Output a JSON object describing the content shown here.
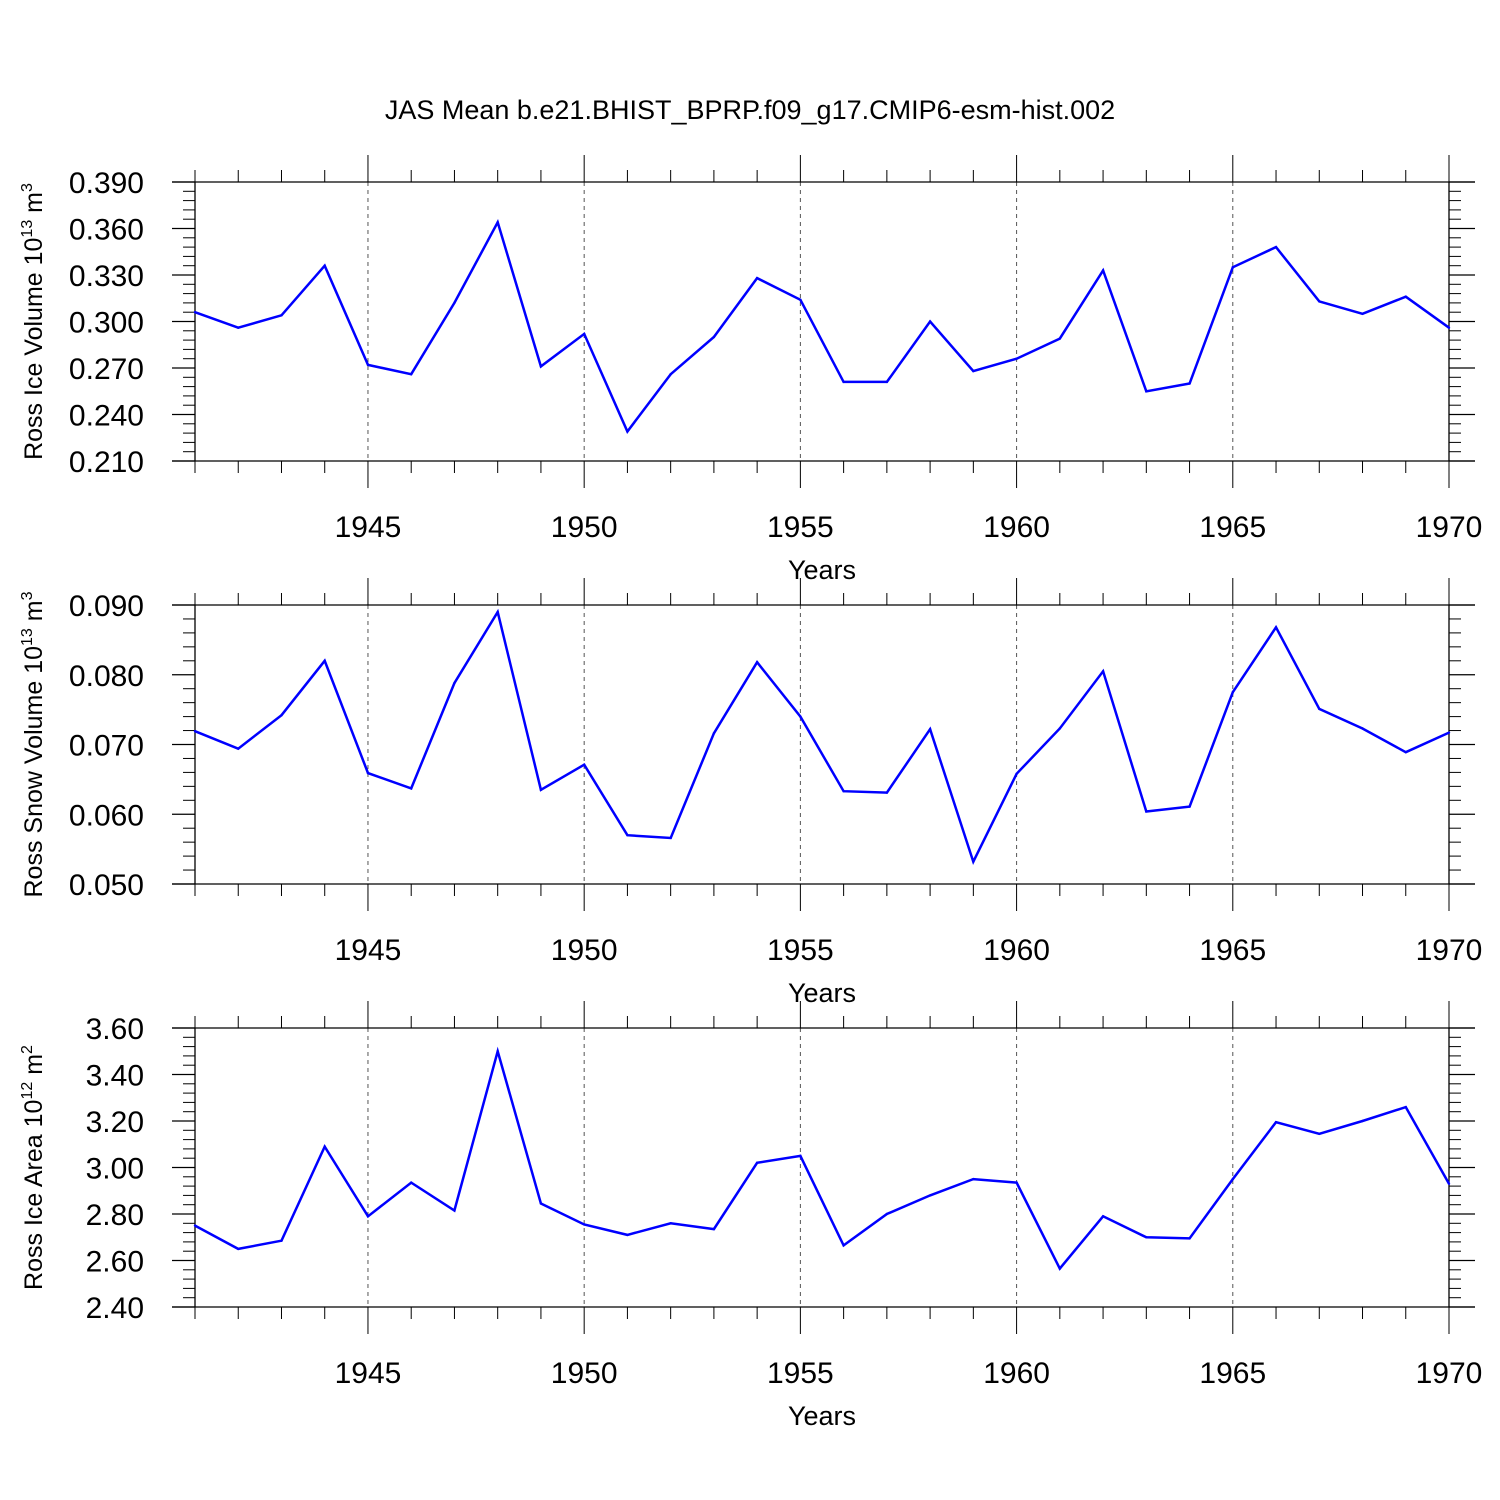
{
  "title": "JAS Mean b.e21.BHIST_BPRP.f09_g17.CMIP6-esm-hist.002",
  "colors": {
    "line": "#0000ff",
    "axis": "#000000",
    "grid": "#555555",
    "background": "#ffffff"
  },
  "chart_data": [
    {
      "type": "line",
      "ylabel": {
        "text": "Ross Ice Volume 10",
        "exponent": "13",
        "unit": " m",
        "unit_exponent": "3"
      },
      "xlabel": "Years",
      "xlim": [
        1941,
        1970
      ],
      "ylim": [
        0.21,
        0.39
      ],
      "ytick_values": [
        0.21,
        0.24,
        0.27,
        0.3,
        0.33,
        0.36,
        0.39
      ],
      "ytick_labels": [
        "0.210",
        "0.240",
        "0.270",
        "0.300",
        "0.330",
        "0.360",
        "0.390"
      ],
      "xtick_values": [
        1945,
        1950,
        1955,
        1960,
        1965,
        1970
      ],
      "xtick_labels": [
        "1945",
        "1950",
        "1955",
        "1960",
        "1965",
        "1970"
      ],
      "grid": "dashed vertical at major x ticks",
      "x": [
        1941,
        1942,
        1943,
        1944,
        1945,
        1946,
        1947,
        1948,
        1949,
        1950,
        1951,
        1952,
        1953,
        1954,
        1955,
        1956,
        1957,
        1958,
        1959,
        1960,
        1961,
        1962,
        1963,
        1964,
        1965,
        1966,
        1967,
        1968,
        1969,
        1970
      ],
      "y": [
        0.306,
        0.296,
        0.304,
        0.336,
        0.272,
        0.266,
        0.312,
        0.364,
        0.271,
        0.292,
        0.229,
        0.266,
        0.29,
        0.328,
        0.314,
        0.261,
        0.261,
        0.3,
        0.268,
        0.276,
        0.289,
        0.333,
        0.255,
        0.26,
        0.335,
        0.348,
        0.313,
        0.305,
        0.316,
        0.296
      ]
    },
    {
      "type": "line",
      "ylabel": {
        "text": "Ross Snow Volume 10",
        "exponent": "13",
        "unit": " m",
        "unit_exponent": "3"
      },
      "xlabel": "Years",
      "xlim": [
        1941,
        1970
      ],
      "ylim": [
        0.05,
        0.09
      ],
      "ytick_values": [
        0.05,
        0.06,
        0.07,
        0.08,
        0.09
      ],
      "ytick_labels": [
        "0.050",
        "0.060",
        "0.070",
        "0.080",
        "0.090"
      ],
      "xtick_values": [
        1945,
        1950,
        1955,
        1960,
        1965,
        1970
      ],
      "xtick_labels": [
        "1945",
        "1950",
        "1955",
        "1960",
        "1965",
        "1970"
      ],
      "grid": "dashed vertical at major x ticks",
      "x": [
        1941,
        1942,
        1943,
        1944,
        1945,
        1946,
        1947,
        1948,
        1949,
        1950,
        1951,
        1952,
        1953,
        1954,
        1955,
        1956,
        1957,
        1958,
        1959,
        1960,
        1961,
        1962,
        1963,
        1964,
        1965,
        1966,
        1967,
        1968,
        1969,
        1970
      ],
      "y": [
        0.0719,
        0.0694,
        0.0742,
        0.082,
        0.0659,
        0.0637,
        0.0788,
        0.089,
        0.0635,
        0.0671,
        0.057,
        0.0566,
        0.0716,
        0.0818,
        0.074,
        0.0633,
        0.0631,
        0.0722,
        0.0532,
        0.0658,
        0.0723,
        0.0805,
        0.0604,
        0.0611,
        0.0775,
        0.0868,
        0.0751,
        0.0723,
        0.0689,
        0.0717
      ]
    },
    {
      "type": "line",
      "ylabel": {
        "text": "Ross Ice Area 10",
        "exponent": "12",
        "unit": " m",
        "unit_exponent": "2"
      },
      "xlabel": "Years",
      "xlim": [
        1941,
        1970
      ],
      "ylim": [
        2.4,
        3.6
      ],
      "ytick_values": [
        2.4,
        2.6,
        2.8,
        3.0,
        3.2,
        3.4,
        3.6
      ],
      "ytick_labels": [
        "2.40",
        "2.60",
        "2.80",
        "3.00",
        "3.20",
        "3.40",
        "3.60"
      ],
      "xtick_values": [
        1945,
        1950,
        1955,
        1960,
        1965,
        1970
      ],
      "xtick_labels": [
        "1945",
        "1950",
        "1955",
        "1960",
        "1965",
        "1970"
      ],
      "grid": "dashed vertical at major x ticks",
      "x": [
        1941,
        1942,
        1943,
        1944,
        1945,
        1946,
        1947,
        1948,
        1949,
        1950,
        1951,
        1952,
        1953,
        1954,
        1955,
        1956,
        1957,
        1958,
        1959,
        1960,
        1961,
        1962,
        1963,
        1964,
        1965,
        1966,
        1967,
        1968,
        1969,
        1970
      ],
      "y": [
        2.75,
        2.65,
        2.685,
        3.09,
        2.79,
        2.935,
        2.815,
        3.5,
        2.845,
        2.755,
        2.71,
        2.76,
        2.735,
        3.02,
        3.05,
        2.665,
        2.8,
        2.88,
        2.95,
        2.935,
        2.565,
        2.79,
        2.7,
        2.695,
        2.95,
        3.195,
        3.145,
        3.2,
        3.26,
        2.93
      ]
    }
  ]
}
